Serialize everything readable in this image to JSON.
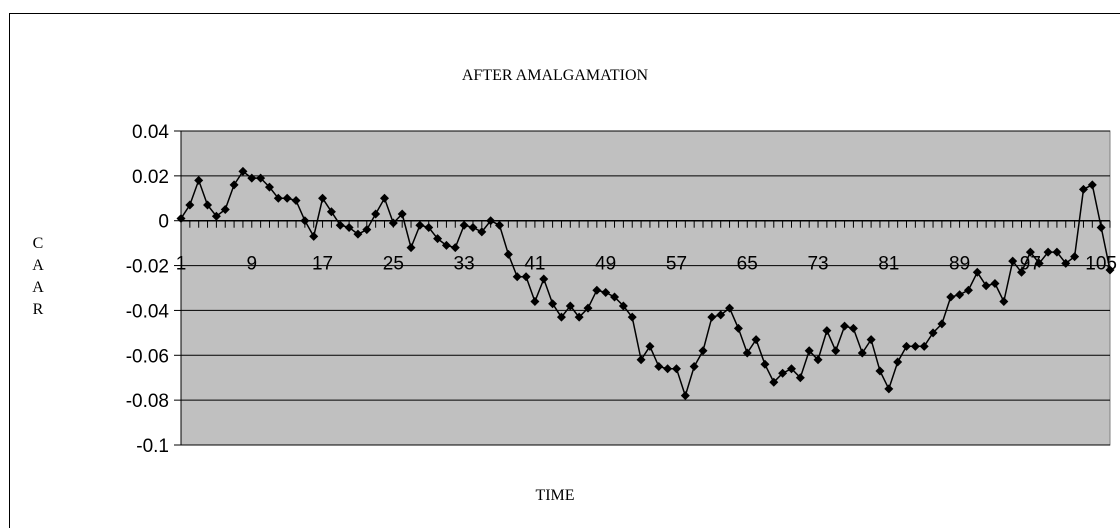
{
  "chart_data": {
    "type": "line",
    "title": "AFTER AMALGAMATION",
    "xlabel": "TIME",
    "ylabel": "CAAR",
    "ylim": [
      -0.1,
      0.04
    ],
    "yticks": [
      "0.04",
      "0.02",
      "0",
      "-0.02",
      "-0.04",
      "-0.06",
      "-0.08",
      "-0.1"
    ],
    "xticks": [
      "1",
      "9",
      "17",
      "25",
      "33",
      "41",
      "49",
      "57",
      "65",
      "73",
      "81",
      "89",
      "97",
      "105"
    ],
    "xlim": [
      1,
      106
    ],
    "grid": true,
    "legend": "none",
    "series": [
      {
        "x": [
          1,
          2,
          3,
          4,
          5,
          6,
          7,
          8,
          9,
          10,
          11,
          12,
          13,
          14,
          15,
          16,
          17,
          18,
          19,
          20,
          21,
          22,
          23,
          24,
          25,
          26,
          27,
          28,
          29,
          30,
          31,
          32,
          33,
          34,
          35,
          36,
          37,
          38,
          39,
          40,
          41,
          42,
          43,
          44,
          45,
          46,
          47,
          48,
          49,
          50,
          51,
          52,
          53,
          54,
          55,
          56,
          57,
          58,
          59,
          60,
          61,
          62,
          63,
          64,
          65,
          66,
          67,
          68,
          69,
          70,
          71,
          72,
          73,
          74,
          75,
          76,
          77,
          78,
          79,
          80,
          81,
          82,
          83,
          84,
          85,
          86,
          87,
          88,
          89,
          90,
          91,
          92,
          93,
          94,
          95,
          96,
          97,
          98,
          99,
          100,
          101,
          102,
          103,
          104,
          105,
          106
        ],
        "values": [
          0.001,
          0.007,
          0.018,
          0.007,
          0.002,
          0.005,
          0.016,
          0.022,
          0.019,
          0.019,
          0.015,
          0.01,
          0.01,
          0.009,
          0.0,
          -0.007,
          0.01,
          0.004,
          -0.002,
          -0.003,
          -0.006,
          -0.004,
          0.003,
          0.01,
          -0.001,
          0.003,
          -0.012,
          -0.002,
          -0.003,
          -0.008,
          -0.011,
          -0.012,
          -0.002,
          -0.003,
          -0.005,
          0.0,
          -0.002,
          -0.015,
          -0.025,
          -0.025,
          -0.036,
          -0.026,
          -0.037,
          -0.043,
          -0.038,
          -0.043,
          -0.039,
          -0.031,
          -0.032,
          -0.034,
          -0.038,
          -0.043,
          -0.062,
          -0.056,
          -0.065,
          -0.066,
          -0.066,
          -0.078,
          -0.065,
          -0.058,
          -0.043,
          -0.042,
          -0.039,
          -0.048,
          -0.059,
          -0.053,
          -0.064,
          -0.072,
          -0.068,
          -0.066,
          -0.07,
          -0.058,
          -0.062,
          -0.049,
          -0.058,
          -0.047,
          -0.048,
          -0.059,
          -0.053,
          -0.067,
          -0.075,
          -0.063,
          -0.056,
          -0.056,
          -0.056,
          -0.05,
          -0.046,
          -0.034,
          -0.033,
          -0.031,
          -0.023,
          -0.029,
          -0.028,
          -0.036,
          -0.018,
          -0.023,
          -0.014,
          -0.019,
          -0.014,
          -0.014,
          -0.019,
          -0.016,
          0.014,
          0.016,
          -0.003,
          -0.022
        ]
      }
    ]
  }
}
